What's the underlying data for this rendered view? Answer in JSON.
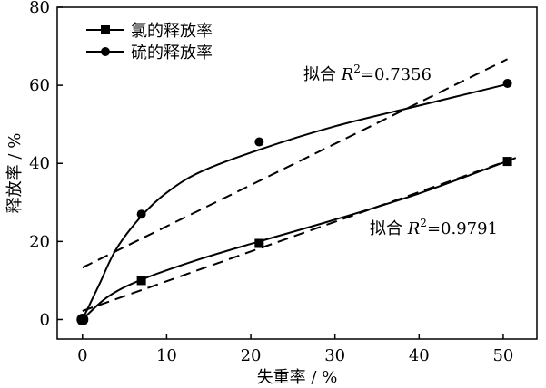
{
  "chart_data": {
    "type": "scatter",
    "xlabel": "失重率 / %",
    "ylabel": "释放率 / %",
    "xlim": [
      -3,
      54
    ],
    "ylim": [
      -5,
      80
    ],
    "xticks": [
      0,
      10,
      20,
      30,
      40,
      50
    ],
    "yticks": [
      0,
      20,
      40,
      60,
      80
    ],
    "grid": false,
    "legend_position": "top-left",
    "series": [
      {
        "name": "氯的释放率",
        "marker": "square",
        "x": [
          0,
          7,
          21,
          50.5
        ],
        "y": [
          0,
          10,
          19.5,
          40.5
        ],
        "fit_curve": {
          "x": [
            0,
            3,
            7,
            14,
            21,
            30,
            40,
            50.5
          ],
          "y": [
            0,
            5.8,
            10.2,
            15.5,
            20,
            25.6,
            32.3,
            40.6
          ]
        },
        "fit_line": {
          "x": [
            0,
            52
          ],
          "y": [
            2.2,
            41.8
          ]
        },
        "annotation": {
          "prefix": "拟合 ",
          "symbol": "R",
          "exponent": "2",
          "value": "=0.9791"
        }
      },
      {
        "name": "硫的释放率",
        "marker": "circle",
        "x": [
          0,
          7,
          21,
          50.5
        ],
        "y": [
          0,
          27,
          45.5,
          60.5
        ],
        "fit_curve": {
          "x": [
            0,
            2,
            4,
            7,
            10,
            14,
            21,
            30,
            40,
            50.5
          ],
          "y": [
            0,
            9,
            18,
            26.5,
            32.5,
            37.8,
            43.5,
            49.5,
            54.8,
            60.3
          ]
        },
        "fit_line": {
          "x": [
            0,
            50.5
          ],
          "y": [
            13.3,
            66.7
          ]
        },
        "annotation": {
          "prefix": "拟合 ",
          "symbol": "R",
          "exponent": "2",
          "value": "=0.7356"
        }
      }
    ]
  }
}
